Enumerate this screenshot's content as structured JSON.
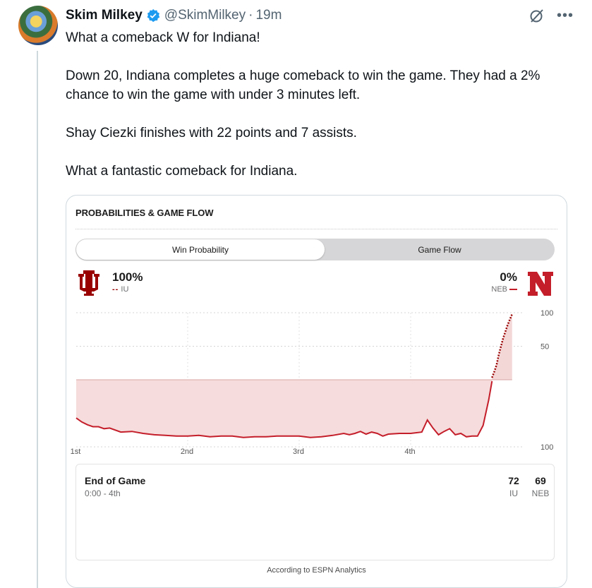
{
  "tweet": {
    "display_name": "Skim Milkey",
    "handle": "@SkimMilkey",
    "separator": "·",
    "time": "19m",
    "paragraphs": [
      "What a comeback W for Indiana!",
      "Down 20, Indiana completes a huge comeback to win the game. They had a 2% chance to win the game with under 3 minutes left.",
      "Shay Ciezki finishes with 22 points and 7 assists.",
      "What a fantastic comeback for Indiana."
    ],
    "icons": [
      "verified-badge-icon",
      "grok-icon",
      "more-icon"
    ],
    "colors": {
      "text": "#0f1419",
      "secondary": "#536471",
      "verified": "#1d9bf0"
    }
  },
  "card": {
    "title": "PROBABILITIES & GAME FLOW",
    "tabs": [
      {
        "label": "Win Probability",
        "selected": true
      },
      {
        "label": "Game Flow",
        "selected": false
      }
    ],
    "team_left": {
      "pct": "100%",
      "legend_marker": "--",
      "abbr": "IU",
      "logo": "iu-trident-logo",
      "color": "#990000"
    },
    "team_right": {
      "pct": "0%",
      "abbr": "NEB",
      "legend_marker": "—",
      "logo": "nebraska-n-logo",
      "color": "#c41e2a"
    },
    "end": {
      "title": "End of Game",
      "time": "0:00 - 4th",
      "home_score": "72",
      "home_abbr": "IU",
      "away_score": "69",
      "away_abbr": "NEB"
    },
    "footer": "According to ESPN Analytics"
  },
  "chart_data": {
    "type": "line",
    "title": "",
    "xlabel": "",
    "ylabel": "",
    "x_tick_labels": [
      "1st",
      "2nd",
      "3rd",
      "4th"
    ],
    "y_tick_labels": [
      "100",
      "50",
      "100"
    ],
    "xlim": [
      0,
      40
    ],
    "ylim": [
      -100,
      100
    ],
    "grid": true,
    "series": [
      {
        "name": "NEB",
        "color": "#c41e2a",
        "x": [
          0,
          0.5,
          1,
          1.5,
          2,
          2.5,
          3,
          4,
          5,
          6,
          7,
          8,
          9,
          10,
          11,
          12,
          13,
          14,
          15,
          16,
          17,
          18,
          19,
          20,
          21,
          22,
          23,
          24,
          24.5,
          25,
          25.5,
          26,
          26.5,
          27,
          27.5,
          28,
          29,
          30,
          31,
          31.5,
          32,
          32.5,
          33,
          33.5,
          34,
          34.5,
          35,
          35.5,
          36,
          36.5,
          37,
          37.3
        ],
        "y": [
          -57,
          -63,
          -67,
          -70,
          -70,
          -73,
          -72,
          -78,
          -77,
          -80,
          -82,
          -83,
          -84,
          -84,
          -83,
          -85,
          -84,
          -84,
          -86,
          -85,
          -85,
          -84,
          -84,
          -84,
          -86,
          -85,
          -83,
          -80,
          -82,
          -80,
          -77,
          -81,
          -78,
          -80,
          -84,
          -81,
          -80,
          -80,
          -78,
          -60,
          -72,
          -82,
          -77,
          -73,
          -82,
          -80,
          -85,
          -84,
          -84,
          -68,
          -30,
          -2
        ]
      },
      {
        "name": "IU",
        "color": "#990000",
        "x": [
          37.3,
          37.5,
          37.7,
          37.9,
          38.1,
          38.3,
          38.5,
          38.7,
          38.9,
          39.1
        ],
        "y": [
          3,
          12,
          22,
          37,
          50,
          62,
          72,
          82,
          90,
          98
        ]
      }
    ]
  }
}
